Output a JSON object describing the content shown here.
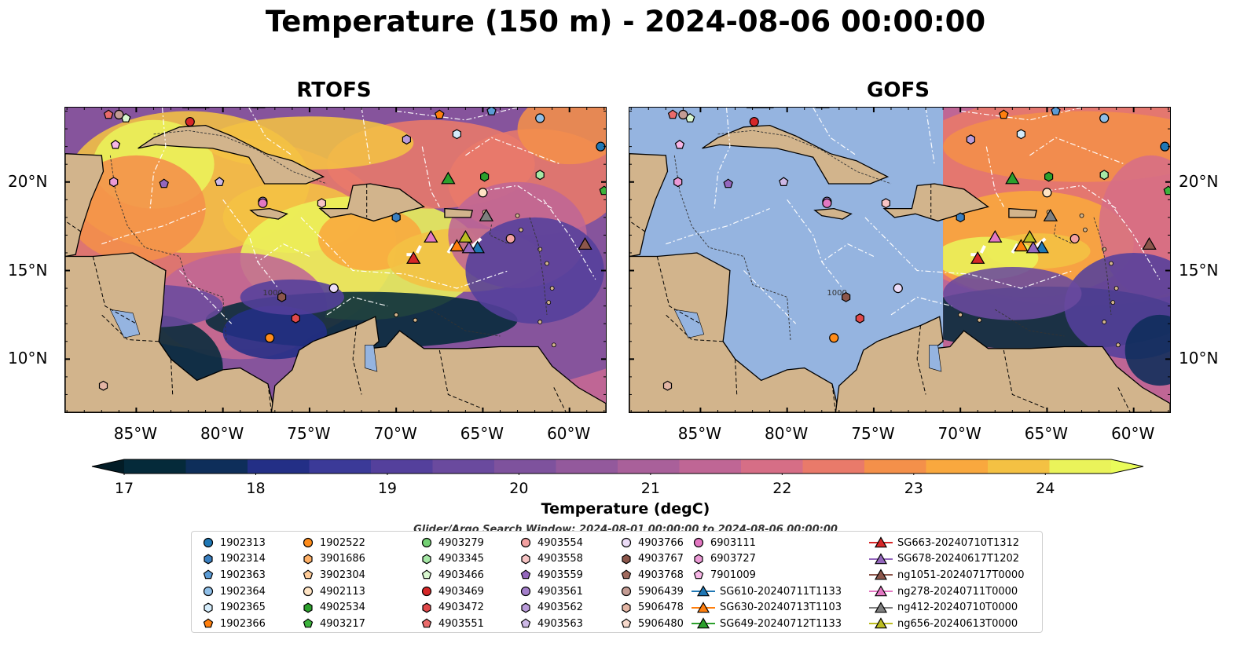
{
  "title": "Temperature (150 m) - 2024-08-06 00:00:00",
  "panels": [
    {
      "title": "RTOFS",
      "model_coverage": "full"
    },
    {
      "title": "GOFS",
      "model_coverage": "east-of-71W"
    }
  ],
  "map": {
    "lon_range": [
      -89.1,
      -57.9
    ],
    "lat_range": [
      7.0,
      24.2
    ],
    "lon_ticks": [
      "85°W",
      "80°W",
      "75°W",
      "70°W",
      "65°W",
      "60°W"
    ],
    "lon_tick_values": [
      -85,
      -80,
      -75,
      -70,
      -65,
      -60
    ],
    "lat_ticks": [
      "20°N",
      "15°N",
      "10°N"
    ],
    "lat_tick_values": [
      20,
      15,
      10
    ],
    "contour_label": "1000",
    "land_color": "#d2b48c",
    "ocean_color": "#95b4e0",
    "eez_line_color": "#ffffff",
    "border_line_color": "#000000"
  },
  "colorbar": {
    "label": "Temperature (degC)",
    "ticks": [
      "17",
      "18",
      "19",
      "20",
      "21",
      "22",
      "23",
      "24"
    ],
    "tick_values": [
      17,
      18,
      19,
      20,
      21,
      22,
      23,
      24
    ],
    "vmin": 17.0,
    "vmax": 24.5,
    "step": 0.5,
    "extend": "both",
    "colors": [
      "#052a3a",
      "#0e2e5a",
      "#232f86",
      "#3b3a98",
      "#54409c",
      "#6a4a9e",
      "#7e529d",
      "#93599c",
      "#a9609a",
      "#bf6695",
      "#d66e86",
      "#e97a6a",
      "#f4904a",
      "#f9a83e",
      "#f4c143",
      "#eaf35a"
    ]
  },
  "search_window": "Glider/Argo Search Window: 2024-08-01 00:00:00 to 2024-08-06 00:00:00",
  "legend": [
    {
      "label": "1902313",
      "marker": "circle",
      "color": "#1f77b4"
    },
    {
      "label": "1902314",
      "marker": "hexagon",
      "color": "#3a7fc0"
    },
    {
      "label": "1902363",
      "marker": "pentagon",
      "color": "#5b9bd5"
    },
    {
      "label": "1902364",
      "marker": "circle",
      "color": "#8fbfe8"
    },
    {
      "label": "1902365",
      "marker": "hexagon",
      "color": "#d4ecfb"
    },
    {
      "label": "1902366",
      "marker": "pentagon",
      "color": "#ff7f0e"
    },
    {
      "label": "1902522",
      "marker": "circle",
      "color": "#ff8c1a"
    },
    {
      "label": "3901686",
      "marker": "hexagon",
      "color": "#ffb066"
    },
    {
      "label": "3902304",
      "marker": "pentagon",
      "color": "#ffcc99"
    },
    {
      "label": "4902113",
      "marker": "circle",
      "color": "#ffe4c4"
    },
    {
      "label": "4902534",
      "marker": "hexagon",
      "color": "#2ca02c"
    },
    {
      "label": "4903217",
      "marker": "pentagon",
      "color": "#3cb33c"
    },
    {
      "label": "4903279",
      "marker": "circle",
      "color": "#74d174"
    },
    {
      "label": "4903345",
      "marker": "hexagon",
      "color": "#a6e8a6"
    },
    {
      "label": "4903466",
      "marker": "pentagon",
      "color": "#d9f7d0"
    },
    {
      "label": "4903469",
      "marker": "circle",
      "color": "#d62728"
    },
    {
      "label": "4903472",
      "marker": "hexagon",
      "color": "#e0484a"
    },
    {
      "label": "4903551",
      "marker": "pentagon",
      "color": "#ea6b6b"
    },
    {
      "label": "4903554",
      "marker": "circle",
      "color": "#f2a0a0"
    },
    {
      "label": "4903558",
      "marker": "hexagon",
      "color": "#f7c4c4"
    },
    {
      "label": "4903559",
      "marker": "pentagon",
      "color": "#9467bd"
    },
    {
      "label": "4903561",
      "marker": "circle",
      "color": "#a47fcb"
    },
    {
      "label": "4903562",
      "marker": "hexagon",
      "color": "#b99bd9"
    },
    {
      "label": "4903563",
      "marker": "pentagon",
      "color": "#cdb8e6"
    },
    {
      "label": "4903766",
      "marker": "circle",
      "color": "#ecdcf7"
    },
    {
      "label": "4903767",
      "marker": "hexagon",
      "color": "#8c564b"
    },
    {
      "label": "4903768",
      "marker": "pentagon",
      "color": "#a06a5e"
    },
    {
      "label": "5906439",
      "marker": "circle",
      "color": "#c49c94"
    },
    {
      "label": "5906478",
      "marker": "hexagon",
      "color": "#e3b5a4"
    },
    {
      "label": "5906480",
      "marker": "pentagon",
      "color": "#f7d9cc"
    },
    {
      "label": "6903111",
      "marker": "circle",
      "color": "#e377c2"
    },
    {
      "label": "6903727",
      "marker": "hexagon",
      "color": "#ec9ad6"
    },
    {
      "label": "7901009",
      "marker": "pentagon",
      "color": "#f7b6e6"
    },
    {
      "label": "SG610-20240711T1133",
      "marker": "triangle",
      "color": "#1f77b4"
    },
    {
      "label": "SG630-20240713T1103",
      "marker": "triangle",
      "color": "#ff7f0e"
    },
    {
      "label": "SG649-20240712T1133",
      "marker": "triangle",
      "color": "#2ca02c"
    },
    {
      "label": "SG663-20240710T1312",
      "marker": "triangle",
      "color": "#d62728"
    },
    {
      "label": "SG678-20240617T1202",
      "marker": "triangle",
      "color": "#9467bd"
    },
    {
      "label": "ng1051-20240717T0000",
      "marker": "triangle",
      "color": "#8c564b"
    },
    {
      "label": "ng278-20240711T0000",
      "marker": "triangle",
      "color": "#e377c2"
    },
    {
      "label": "ng412-20240710T0000",
      "marker": "triangle",
      "color": "#7f7f7f"
    },
    {
      "label": "ng656-20240613T0000",
      "marker": "triangle",
      "color": "#bcbd22"
    }
  ],
  "observations": [
    {
      "id": "1902313",
      "lon": -58.2,
      "lat": 22.0
    },
    {
      "id": "1902314",
      "lon": -70.0,
      "lat": 18.0
    },
    {
      "id": "1902363",
      "lon": -64.5,
      "lat": 24.0
    },
    {
      "id": "1902364",
      "lon": -61.7,
      "lat": 23.6
    },
    {
      "id": "1902365",
      "lon": -66.5,
      "lat": 22.7
    },
    {
      "id": "1902366",
      "lon": -67.5,
      "lat": 23.8
    },
    {
      "id": "1902522",
      "lon": -77.3,
      "lat": 11.2
    },
    {
      "id": "4902113",
      "lon": -65.0,
      "lat": 19.4
    },
    {
      "id": "4902534",
      "lon": -64.9,
      "lat": 20.3
    },
    {
      "id": "4903217",
      "lon": -58.0,
      "lat": 19.5
    },
    {
      "id": "4903345",
      "lon": -61.7,
      "lat": 20.4
    },
    {
      "id": "4903466",
      "lon": -85.6,
      "lat": 23.6
    },
    {
      "id": "4903469",
      "lon": -81.9,
      "lat": 23.4
    },
    {
      "id": "4903472",
      "lon": -75.8,
      "lat": 12.3
    },
    {
      "id": "4903551",
      "lon": -86.6,
      "lat": 23.8
    },
    {
      "id": "4903554",
      "lon": -63.4,
      "lat": 16.8
    },
    {
      "id": "4903558",
      "lon": -74.3,
      "lat": 18.8
    },
    {
      "id": "4903559",
      "lon": -83.4,
      "lat": 19.9
    },
    {
      "id": "4903561",
      "lon": -77.7,
      "lat": 18.9
    },
    {
      "id": "4903562",
      "lon": -69.4,
      "lat": 22.4
    },
    {
      "id": "4903563",
      "lon": -80.2,
      "lat": 20.0
    },
    {
      "id": "4903766",
      "lon": -73.6,
      "lat": 14.0
    },
    {
      "id": "4903767",
      "lon": -76.6,
      "lat": 13.5
    },
    {
      "id": "5906439",
      "lon": -86.0,
      "lat": 23.8
    },
    {
      "id": "5906478",
      "lon": -86.9,
      "lat": 8.5
    },
    {
      "id": "6903111",
      "lon": -77.7,
      "lat": 18.8
    },
    {
      "id": "6903727",
      "lon": -86.3,
      "lat": 20.0
    },
    {
      "id": "7901009",
      "lon": -86.2,
      "lat": 22.1
    },
    {
      "id": "SG610-20240711T1133",
      "lon": -65.3,
      "lat": 16.3
    },
    {
      "id": "SG630-20240713T1103",
      "lon": -66.5,
      "lat": 16.4
    },
    {
      "id": "SG649-20240712T1133",
      "lon": -67.0,
      "lat": 20.2
    },
    {
      "id": "SG663-20240710T1312",
      "lon": -69.0,
      "lat": 15.7
    },
    {
      "id": "SG678-20240617T1202",
      "lon": -65.8,
      "lat": 16.3
    },
    {
      "id": "ng1051-20240717T0000",
      "lon": -59.1,
      "lat": 16.5
    },
    {
      "id": "ng278-20240711T0000",
      "lon": -68.0,
      "lat": 16.9
    },
    {
      "id": "ng412-20240710T0000",
      "lon": -64.8,
      "lat": 18.1
    },
    {
      "id": "ng656-20240613T0000",
      "lon": -66.0,
      "lat": 16.9
    }
  ]
}
